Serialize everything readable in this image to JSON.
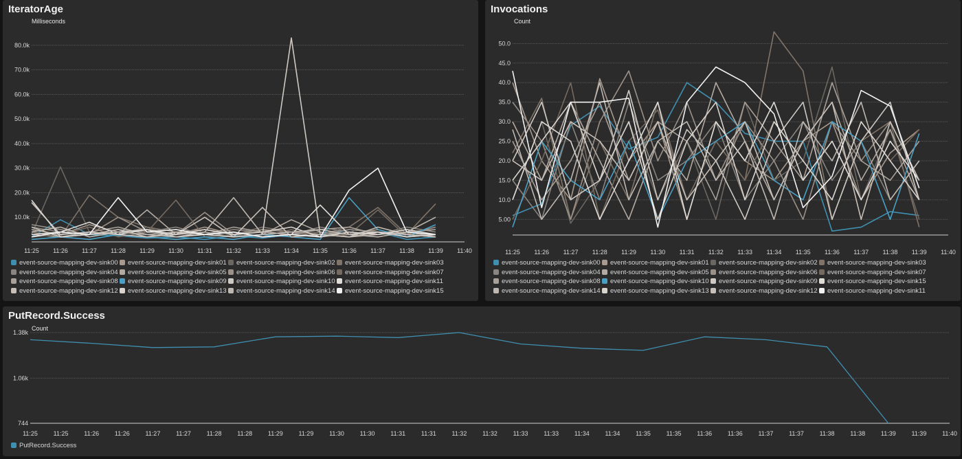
{
  "chart_data": [
    {
      "id": "iter",
      "type": "line",
      "title": "IteratorAge",
      "unit_label": "Milliseconds",
      "ylim": [
        0,
        85000
      ],
      "y_ticks": [
        {
          "v": 10000,
          "label": "10.0k"
        },
        {
          "v": 20000,
          "label": "20.0k"
        },
        {
          "v": 30000,
          "label": "30.0k"
        },
        {
          "v": 40000,
          "label": "40.0k"
        },
        {
          "v": 50000,
          "label": "50.0k"
        },
        {
          "v": 60000,
          "label": "60.0k"
        },
        {
          "v": 70000,
          "label": "70.0k"
        },
        {
          "v": 80000,
          "label": "80.0k"
        }
      ],
      "x_labels": [
        "11:25",
        "11:26",
        "11:27",
        "11:28",
        "11:29",
        "11:30",
        "11:31",
        "11:32",
        "11:33",
        "11:34",
        "11:35",
        "11:36",
        "11:37",
        "11:38",
        "11:39",
        "11:40"
      ],
      "grid": true,
      "legend_position": "bottom",
      "series": [
        {
          "name": "event-source-mapping-dev-sink00",
          "color": "#3f8fb0",
          "values": [
            2000,
            9000,
            3000,
            2500,
            1500,
            2000,
            1000,
            2500,
            1500,
            3000,
            2000,
            5000,
            4000,
            1000,
            2000
          ]
        },
        {
          "name": "event-source-mapping-dev-sink01",
          "color": "#a89a8e",
          "values": [
            5000,
            3000,
            7000,
            4000,
            5000,
            3000,
            6000,
            3000,
            5000,
            2000,
            4000,
            3000,
            5000,
            2000,
            3000
          ]
        },
        {
          "name": "event-source-mapping-dev-sink02",
          "color": "#6b6660",
          "values": [
            3000,
            30500,
            4000,
            3000,
            6000,
            2000,
            3000,
            4000,
            2000,
            3000,
            4000,
            2000,
            3000,
            5000,
            2000
          ]
        },
        {
          "name": "event-source-mapping-dev-sink03",
          "color": "#807469",
          "values": [
            4000,
            2000,
            19000,
            10000,
            6000,
            4000,
            5000,
            3000,
            6000,
            4000,
            3000,
            6000,
            14000,
            3000,
            15500
          ]
        },
        {
          "name": "event-source-mapping-dev-sink04",
          "color": "#8a8580",
          "values": [
            6000,
            4000,
            3000,
            5000,
            4000,
            6000,
            3000,
            5000,
            4000,
            3000,
            6000,
            4000,
            3000,
            6000,
            4000
          ]
        },
        {
          "name": "event-source-mapping-dev-sink05",
          "color": "#b3aaa2",
          "values": [
            3000,
            2000,
            4000,
            3000,
            13000,
            3000,
            4000,
            2000,
            3000,
            9000,
            4000,
            2000,
            3000,
            4000,
            2000
          ]
        },
        {
          "name": "event-source-mapping-dev-sink06",
          "color": "#9a9189",
          "values": [
            7000,
            5000,
            3000,
            10000,
            4000,
            3000,
            12000,
            3000,
            5000,
            4000,
            3000,
            5000,
            4000,
            3000,
            6000
          ]
        },
        {
          "name": "event-source-mapping-dev-sink07",
          "color": "#756a60",
          "values": [
            2000,
            3000,
            6000,
            2000,
            4000,
            17000,
            2000,
            3000,
            2000,
            5000,
            2000,
            3000,
            13000,
            2000,
            3000
          ]
        },
        {
          "name": "event-source-mapping-dev-sink08",
          "color": "#a8a099",
          "values": [
            5000,
            3000,
            4000,
            6000,
            3000,
            4000,
            3000,
            6000,
            4000,
            3000,
            5000,
            6000,
            3000,
            4000,
            5000
          ]
        },
        {
          "name": "event-source-mapping-dev-sink09",
          "color": "#4aa0c4",
          "values": [
            1000,
            2000,
            1000,
            3000,
            2000,
            1000,
            2000,
            1000,
            3000,
            2000,
            1000,
            18000,
            5000,
            2000,
            7000
          ]
        },
        {
          "name": "event-source-mapping-dev-sink10",
          "color": "#cfc9c4",
          "values": [
            16000,
            3000,
            4000,
            3000,
            2000,
            4000,
            3000,
            2000,
            3000,
            83000,
            3000,
            2000,
            4000,
            3000,
            2000
          ]
        },
        {
          "name": "event-source-mapping-dev-sink11",
          "color": "#e0dcd8",
          "values": [
            3000,
            4000,
            8000,
            3000,
            5000,
            2000,
            3000,
            4000,
            2000,
            3000,
            15000,
            3000,
            4000,
            2000,
            3000
          ]
        },
        {
          "name": "event-source-mapping-dev-sink12",
          "color": "#c8c0b8",
          "values": [
            6000,
            2000,
            3000,
            5000,
            2000,
            3000,
            10000,
            2000,
            14000,
            2000,
            3000,
            2000,
            6000,
            3000,
            2000
          ]
        },
        {
          "name": "event-source-mapping-dev-sink13",
          "color": "#dad4cf",
          "values": [
            17000,
            2000,
            3000,
            4000,
            5000,
            3000,
            5000,
            3000,
            4000,
            6000,
            2000,
            4000,
            3000,
            5000,
            3000
          ]
        },
        {
          "name": "event-source-mapping-dev-sink14",
          "color": "#bfb8b2",
          "values": [
            4000,
            6000,
            2000,
            4000,
            3000,
            2000,
            4000,
            18000,
            3000,
            4000,
            5000,
            3000,
            2000,
            4000,
            10000
          ]
        },
        {
          "name": "event-source-mapping-dev-sink15",
          "color": "#f2f2f2",
          "values": [
            2000,
            4000,
            3000,
            18000,
            4000,
            5000,
            3000,
            4000,
            2000,
            3000,
            2000,
            21000,
            30000,
            4000,
            3000
          ]
        }
      ]
    },
    {
      "id": "inv",
      "type": "line",
      "title": "Invocations",
      "unit_label": "Count",
      "ylim": [
        1,
        52
      ],
      "y_ticks": [
        {
          "v": 5,
          "label": "5.00"
        },
        {
          "v": 10,
          "label": "10.0"
        },
        {
          "v": 15,
          "label": "15.0"
        },
        {
          "v": 20,
          "label": "20.0"
        },
        {
          "v": 25,
          "label": "25.0"
        },
        {
          "v": 30,
          "label": "30.0"
        },
        {
          "v": 35,
          "label": "35.0"
        },
        {
          "v": 40,
          "label": "40.0"
        },
        {
          "v": 45,
          "label": "45.0"
        },
        {
          "v": 50,
          "label": "50.0"
        }
      ],
      "x_labels": [
        "11:25",
        "11:26",
        "11:27",
        "11:28",
        "11:29",
        "11:30",
        "11:31",
        "11:32",
        "11:33",
        "11:34",
        "11:35",
        "11:36",
        "11:37",
        "11:38",
        "11:39",
        "11:40"
      ],
      "grid": true,
      "legend_position": "bottom",
      "series": [
        {
          "name": "event-source-mapping-dev-sink00",
          "color": "#3f8fb0",
          "values": [
            6,
            9,
            29,
            34,
            23,
            26,
            40,
            35,
            27,
            25,
            25,
            2,
            3,
            7,
            6
          ]
        },
        {
          "name": "event-source-mapping-dev-sink01",
          "color": "#a89a8e",
          "values": [
            40,
            20,
            10,
            41,
            20,
            30,
            5,
            30,
            20,
            15,
            25,
            30,
            10,
            22,
            28
          ]
        },
        {
          "name": "event-source-mapping-dev-sink02",
          "color": "#6b6660",
          "values": [
            10,
            30,
            4,
            15,
            30,
            10,
            25,
            5,
            35,
            15,
            20,
            44,
            10,
            28,
            5
          ]
        },
        {
          "name": "event-source-mapping-dev-sink03",
          "color": "#807469",
          "values": [
            22,
            36,
            5,
            25,
            10,
            35,
            10,
            25,
            15,
            53,
            43,
            5,
            25,
            30,
            3
          ]
        },
        {
          "name": "event-source-mapping-dev-sink04",
          "color": "#8a8580",
          "values": [
            15,
            5,
            30,
            10,
            35,
            15,
            20,
            30,
            10,
            20,
            30,
            15,
            25,
            10,
            20
          ]
        },
        {
          "name": "event-source-mapping-dev-sink05",
          "color": "#b3aaa2",
          "values": [
            30,
            15,
            35,
            20,
            5,
            25,
            15,
            40,
            25,
            10,
            25,
            35,
            15,
            28,
            10
          ]
        },
        {
          "name": "event-source-mapping-dev-sink06",
          "color": "#9a9189",
          "values": [
            35,
            25,
            5,
            30,
            43,
            20,
            35,
            15,
            30,
            20,
            5,
            30,
            20,
            30,
            15
          ]
        },
        {
          "name": "event-source-mapping-dev-sink07",
          "color": "#756a60",
          "values": [
            5,
            20,
            40,
            5,
            25,
            33,
            10,
            25,
            15,
            30,
            20,
            10,
            30,
            20,
            28
          ]
        },
        {
          "name": "event-source-mapping-dev-sink08",
          "color": "#a8a099",
          "values": [
            25,
            10,
            20,
            35,
            15,
            30,
            25,
            10,
            35,
            25,
            15,
            40,
            20,
            15,
            25
          ]
        },
        {
          "name": "event-source-mapping-dev-sink10",
          "color": "#4aa0c4",
          "values": [
            3,
            25,
            15,
            10,
            25,
            5,
            20,
            25,
            30,
            15,
            10,
            30,
            25,
            5,
            27
          ]
        },
        {
          "name": "event-source-mapping-dev-sink09",
          "color": "#cfc9c4",
          "values": [
            20,
            35,
            10,
            15,
            38,
            10,
            28,
            20,
            5,
            25,
            35,
            5,
            25,
            35,
            10
          ]
        },
        {
          "name": "event-source-mapping-dev-sink15",
          "color": "#e0dcd8",
          "values": [
            10,
            30,
            25,
            5,
            20,
            35,
            5,
            30,
            20,
            35,
            15,
            25,
            10,
            25,
            15
          ]
        },
        {
          "name": "event-source-mapping-dev-sink14",
          "color": "#bfb8b2",
          "values": [
            28,
            5,
            15,
            40,
            10,
            25,
            30,
            15,
            25,
            5,
            30,
            20,
            35,
            10,
            20
          ]
        },
        {
          "name": "event-source-mapping-dev-sink13",
          "color": "#dad4cf",
          "values": [
            15,
            25,
            35,
            15,
            30,
            5,
            25,
            35,
            10,
            30,
            20,
            10,
            30,
            20,
            10
          ]
        },
        {
          "name": "event-source-mapping-dev-sink12",
          "color": "#c8c0b8",
          "values": [
            20,
            15,
            30,
            25,
            15,
            30,
            10,
            20,
            30,
            10,
            25,
            35,
            5,
            30,
            15
          ]
        },
        {
          "name": "event-source-mapping-dev-sink11",
          "color": "#f2f2f2",
          "values": [
            43,
            8,
            35,
            35,
            36,
            3,
            35,
            44,
            40,
            32,
            8,
            16,
            38,
            34,
            13
          ]
        }
      ]
    },
    {
      "id": "put",
      "type": "line",
      "title": "PutRecord.Success",
      "unit_label": "Count",
      "ylim": [
        744,
        1380
      ],
      "y_ticks": [
        {
          "v": 744,
          "label": "744"
        },
        {
          "v": 1060,
          "label": "1.06k"
        },
        {
          "v": 1380,
          "label": "1.38k"
        }
      ],
      "x_labels": [
        "11:25",
        "11:25",
        "11:26",
        "11:26",
        "11:27",
        "11:27",
        "11:28",
        "11:28",
        "11:29",
        "11:29",
        "11:30",
        "11:30",
        "11:31",
        "11:31",
        "11:32",
        "11:32",
        "11:33",
        "11:33",
        "11:34",
        "11:34",
        "11:35",
        "11:35",
        "11:36",
        "11:36",
        "11:37",
        "11:37",
        "11:38",
        "11:38",
        "11:39",
        "11:39",
        "11:40"
      ],
      "grid": true,
      "legend_position": "bottom",
      "series": [
        {
          "name": "PutRecord.Success",
          "color": "#3f8fb0",
          "values": [
            1330,
            1305,
            1275,
            1280,
            1350,
            1355,
            1345,
            1380,
            1300,
            1270,
            1255,
            1350,
            1330,
            1280,
            744
          ]
        }
      ]
    }
  ]
}
